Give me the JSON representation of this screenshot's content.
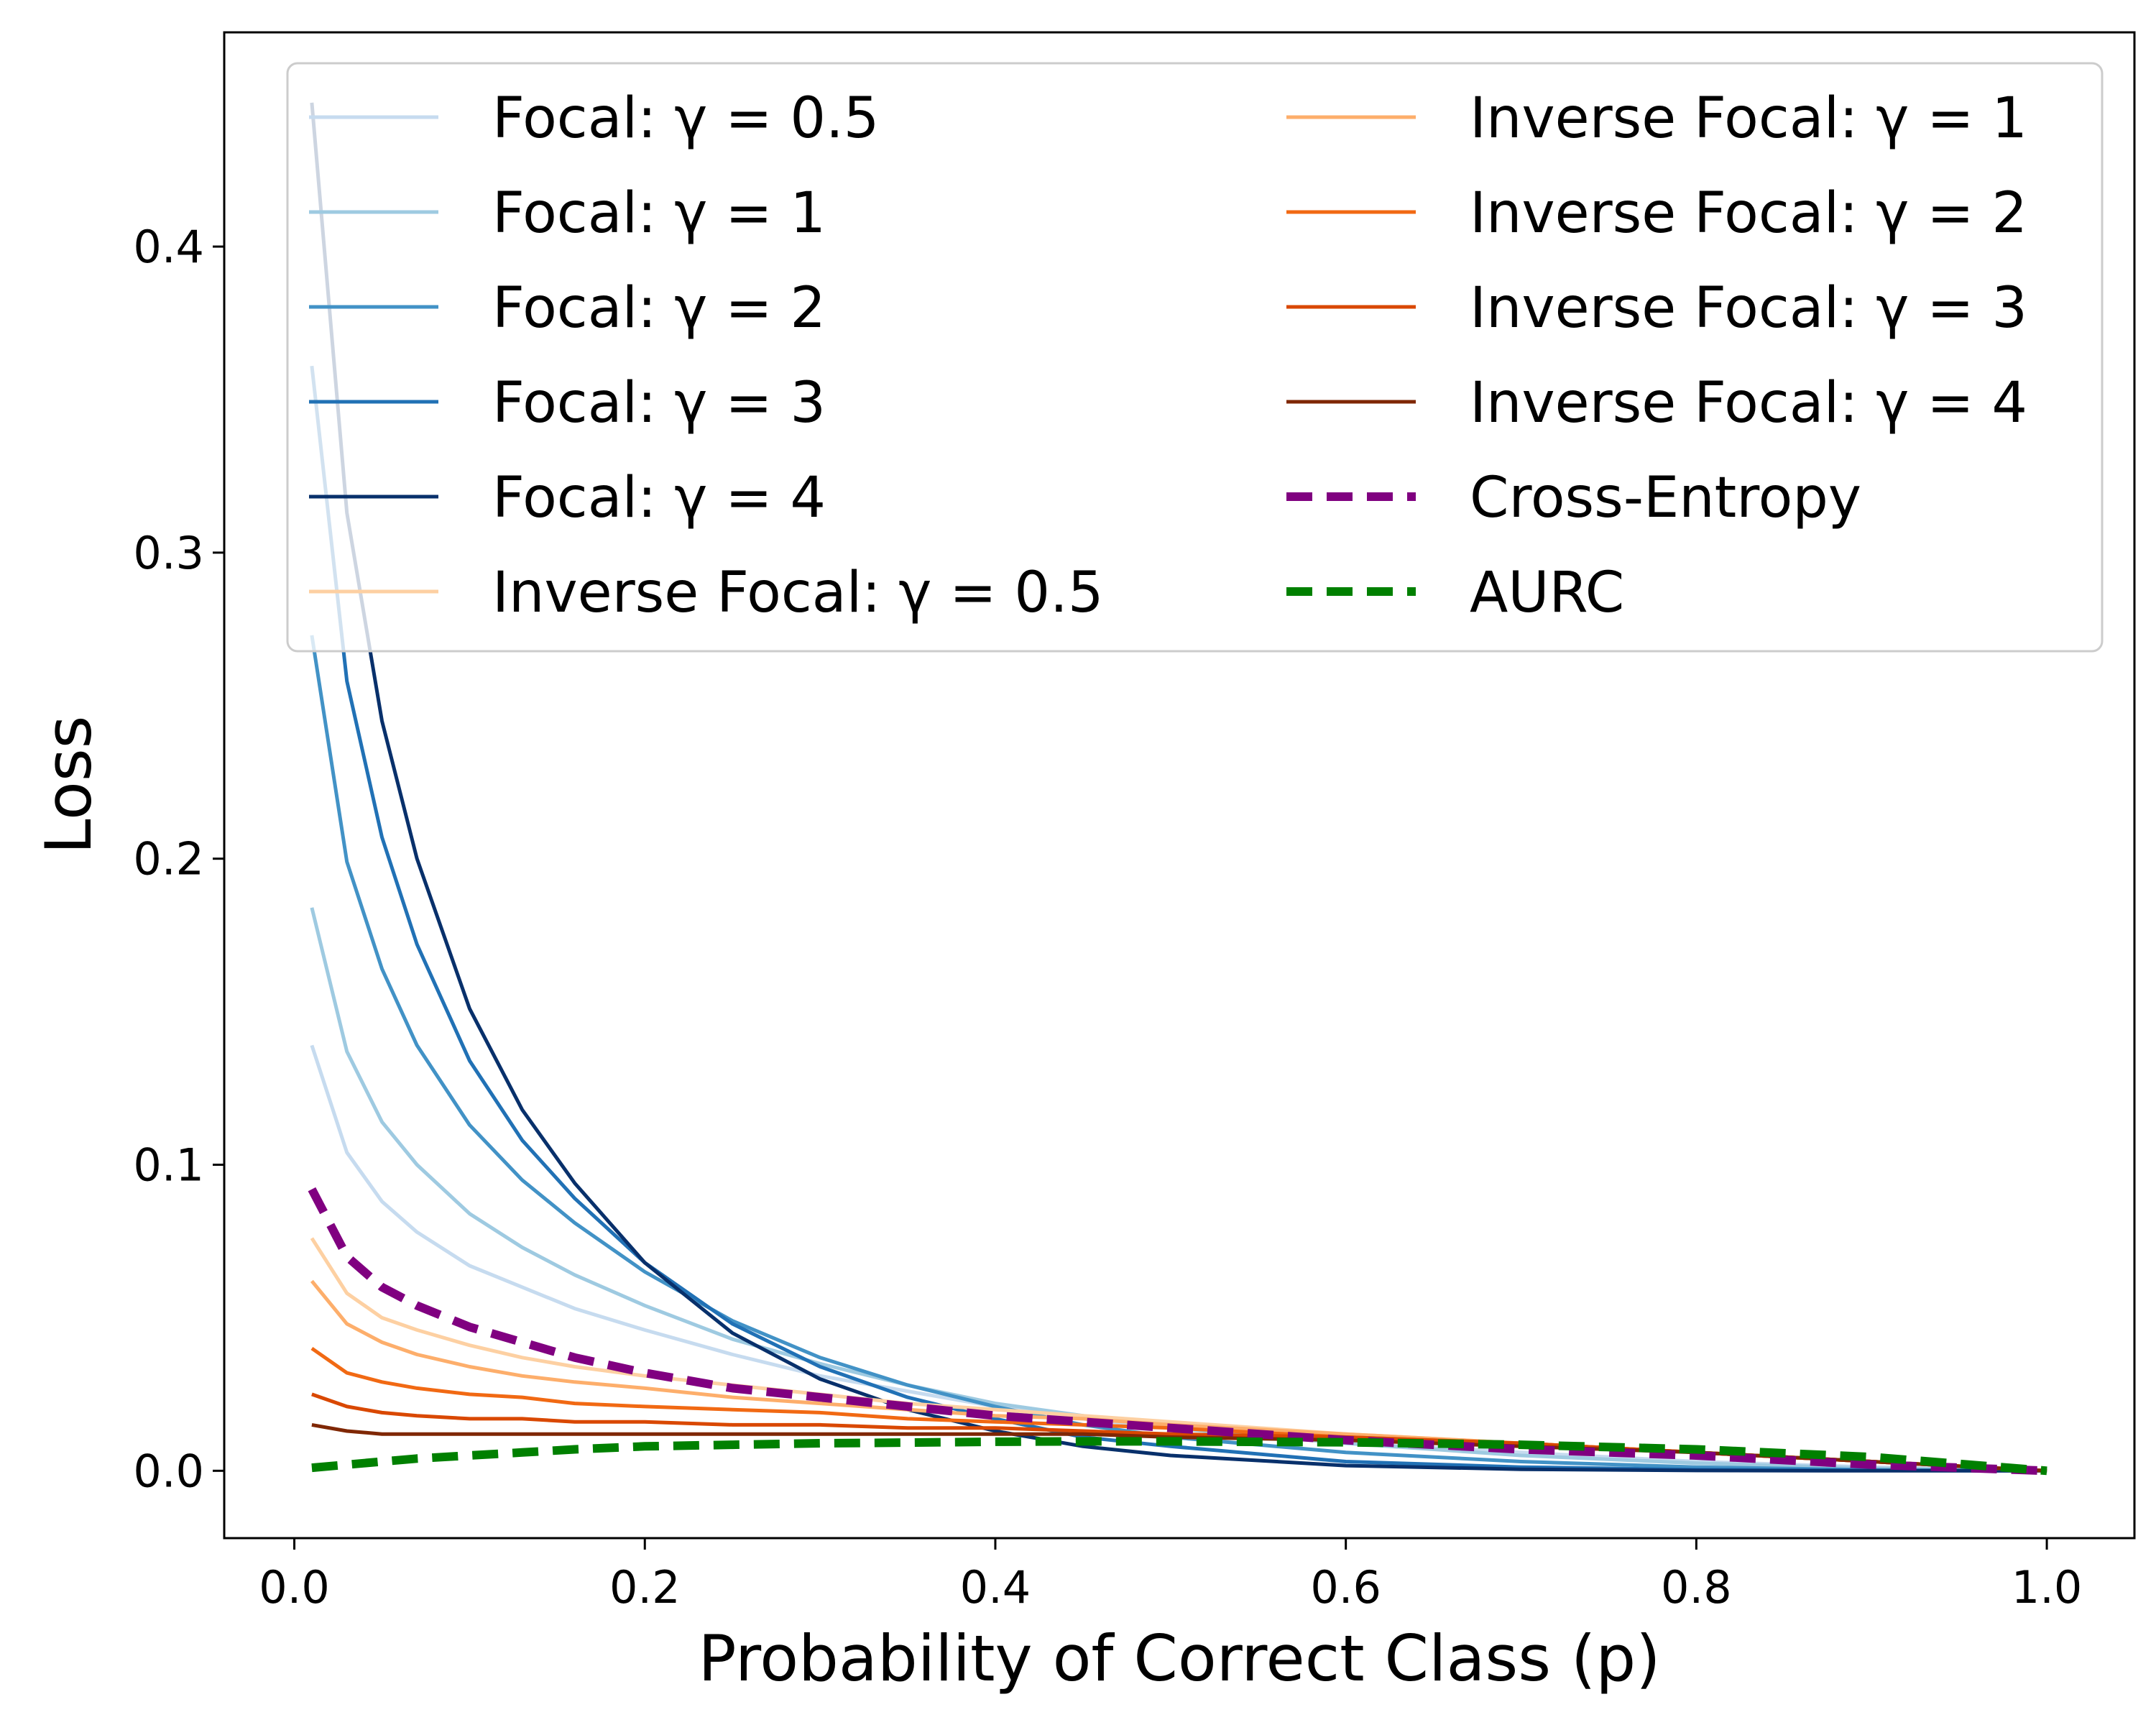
{
  "chart_data": {
    "type": "line",
    "title": "",
    "xlabel": "Probability of Correct Class (p)",
    "ylabel": "Loss",
    "xlim": [
      -0.04,
      1.05
    ],
    "ylim": [
      -0.022,
      0.47
    ],
    "xticks": [
      0.0,
      0.2,
      0.4,
      0.6,
      0.8,
      1.0
    ],
    "xtick_labels": [
      "0.0",
      "0.2",
      "0.4",
      "0.6",
      "0.8",
      "1.0"
    ],
    "yticks": [
      0.0,
      0.1,
      0.2,
      0.3,
      0.4
    ],
    "ytick_labels": [
      "0.0",
      "0.1",
      "0.2",
      "0.3",
      "0.4"
    ],
    "grid": false,
    "legend_position": "top",
    "x": [
      0.01,
      0.03,
      0.05,
      0.07,
      0.1,
      0.13,
      0.16,
      0.2,
      0.25,
      0.3,
      0.35,
      0.4,
      0.45,
      0.5,
      0.6,
      0.7,
      0.8,
      0.9,
      1.0
    ],
    "series": [
      {
        "name": "Focal: γ = 0.5",
        "color": "#c6dbef",
        "width": 5,
        "dash": "",
        "values": [
          0.139,
          0.104,
          0.088,
          0.078,
          0.067,
          0.06,
          0.053,
          0.046,
          0.038,
          0.031,
          0.026,
          0.021,
          0.017,
          0.014,
          0.009,
          0.006,
          0.003,
          0.0012,
          0.0
        ]
      },
      {
        "name": "Focal: γ = 1",
        "color": "#9ecae1",
        "width": 5,
        "dash": "",
        "values": [
          0.184,
          0.137,
          0.114,
          0.1,
          0.084,
          0.073,
          0.064,
          0.054,
          0.043,
          0.035,
          0.028,
          0.022,
          0.018,
          0.014,
          0.009,
          0.005,
          0.0025,
          0.0008,
          0.0
        ]
      },
      {
        "name": "Focal: γ = 2",
        "color": "#4292c6",
        "width": 5,
        "dash": "",
        "values": [
          0.273,
          0.199,
          0.164,
          0.139,
          0.113,
          0.095,
          0.081,
          0.065,
          0.049,
          0.037,
          0.028,
          0.021,
          0.015,
          0.011,
          0.006,
          0.003,
          0.0012,
          0.0003,
          0.0
        ]
      },
      {
        "name": "Focal: γ = 3",
        "color": "#2171b5",
        "width": 5,
        "dash": "",
        "values": [
          0.361,
          0.258,
          0.207,
          0.172,
          0.134,
          0.108,
          0.089,
          0.068,
          0.048,
          0.034,
          0.024,
          0.017,
          0.011,
          0.008,
          0.003,
          0.0012,
          0.0004,
          0.0001,
          0.0
        ]
      },
      {
        "name": "Focal: γ = 4",
        "color": "#08306b",
        "width": 5,
        "dash": "",
        "values": [
          0.447,
          0.313,
          0.245,
          0.2,
          0.151,
          0.118,
          0.094,
          0.068,
          0.045,
          0.03,
          0.02,
          0.013,
          0.008,
          0.005,
          0.0017,
          0.0005,
          0.0001,
          0.0,
          0.0
        ]
      },
      {
        "name": "Inverse Focal: γ = 0.5",
        "color": "#fdd0a2",
        "width": 5,
        "dash": "",
        "values": [
          0.076,
          0.058,
          0.05,
          0.046,
          0.041,
          0.037,
          0.034,
          0.031,
          0.028,
          0.025,
          0.022,
          0.02,
          0.018,
          0.016,
          0.012,
          0.009,
          0.006,
          0.003,
          0.0
        ]
      },
      {
        "name": "Inverse Focal: γ = 1",
        "color": "#fdae6b",
        "width": 5,
        "dash": "",
        "values": [
          0.062,
          0.048,
          0.042,
          0.038,
          0.034,
          0.031,
          0.029,
          0.027,
          0.024,
          0.022,
          0.02,
          0.018,
          0.017,
          0.015,
          0.012,
          0.009,
          0.006,
          0.003,
          0.0
        ]
      },
      {
        "name": "Inverse Focal: γ = 2",
        "color": "#f16913",
        "width": 5,
        "dash": "",
        "values": [
          0.04,
          0.032,
          0.029,
          0.027,
          0.025,
          0.024,
          0.022,
          0.021,
          0.02,
          0.019,
          0.017,
          0.016,
          0.015,
          0.014,
          0.011,
          0.009,
          0.006,
          0.003,
          0.0
        ]
      },
      {
        "name": "Inverse Focal: γ = 3",
        "color": "#d94801",
        "width": 5,
        "dash": "",
        "values": [
          0.025,
          0.021,
          0.019,
          0.018,
          0.017,
          0.017,
          0.016,
          0.016,
          0.015,
          0.015,
          0.014,
          0.014,
          0.013,
          0.012,
          0.011,
          0.009,
          0.006,
          0.003,
          0.0
        ]
      },
      {
        "name": "Inverse Focal: γ = 4",
        "color": "#7f2704",
        "width": 5,
        "dash": "",
        "values": [
          0.015,
          0.013,
          0.012,
          0.012,
          0.012,
          0.012,
          0.012,
          0.012,
          0.012,
          0.012,
          0.012,
          0.012,
          0.012,
          0.011,
          0.01,
          0.008,
          0.006,
          0.003,
          0.0
        ]
      },
      {
        "name": "Cross-Entropy",
        "color": "#800080",
        "width": 12,
        "dash": "36,20",
        "values": [
          0.092,
          0.07,
          0.06,
          0.054,
          0.047,
          0.042,
          0.037,
          0.032,
          0.027,
          0.024,
          0.021,
          0.018,
          0.016,
          0.014,
          0.01,
          0.007,
          0.005,
          0.002,
          0.0
        ]
      },
      {
        "name": "AURC",
        "color": "#008000",
        "width": 12,
        "dash": "36,20",
        "values": [
          0.001,
          0.002,
          0.003,
          0.004,
          0.005,
          0.006,
          0.007,
          0.008,
          0.0085,
          0.009,
          0.0092,
          0.0095,
          0.0096,
          0.0096,
          0.0093,
          0.0085,
          0.007,
          0.0045,
          0.0
        ]
      }
    ]
  }
}
